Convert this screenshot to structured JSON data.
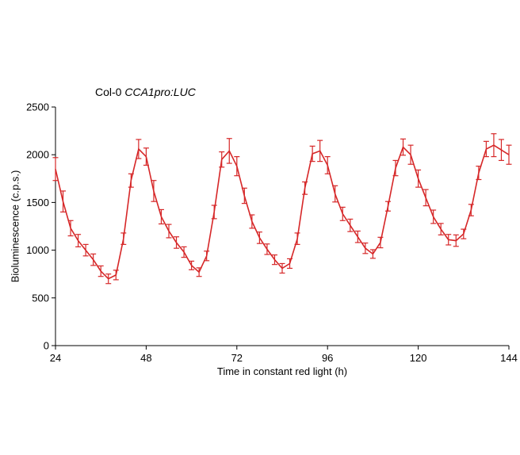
{
  "chart_data": {
    "type": "line",
    "title_prefix": "Col-0",
    "title_italic": "CCA1pro:LUC",
    "xlabel": "Time in constant red light (h)",
    "ylabel": "Bioluminescence (c.p.s.)",
    "xlim": [
      24,
      144
    ],
    "ylim": [
      0,
      2500
    ],
    "xticks": [
      24,
      48,
      72,
      96,
      120,
      144
    ],
    "yticks": [
      0,
      500,
      1000,
      1500,
      2000,
      2500
    ],
    "grid": false,
    "legend": "none",
    "line_color": "#d62728",
    "series": [
      {
        "x": [
          24,
          26,
          28,
          30,
          32,
          34,
          36,
          38,
          40,
          42,
          44,
          46,
          48,
          50,
          52,
          54,
          56,
          58,
          60,
          62,
          64,
          66,
          68,
          70,
          72,
          74,
          76,
          78,
          80,
          82,
          84,
          86,
          88,
          90,
          92,
          94,
          96,
          98,
          100,
          102,
          104,
          106,
          108,
          110,
          112,
          114,
          116,
          118,
          120,
          122,
          124,
          126,
          128,
          130,
          132,
          134,
          136,
          138,
          140,
          142,
          144
        ],
        "y": [
          1850,
          1510,
          1230,
          1100,
          1000,
          900,
          780,
          700,
          740,
          1120,
          1730,
          2060,
          1980,
          1620,
          1350,
          1200,
          1080,
          980,
          840,
          770,
          940,
          1400,
          1950,
          2040,
          1880,
          1570,
          1300,
          1130,
          1010,
          900,
          810,
          860,
          1120,
          1650,
          2010,
          2040,
          1890,
          1590,
          1380,
          1260,
          1140,
          1020,
          960,
          1080,
          1460,
          1860,
          2080,
          2000,
          1750,
          1550,
          1350,
          1220,
          1110,
          1100,
          1170,
          1420,
          1810,
          2060,
          2100,
          2050,
          2000
        ],
        "err": [
          120,
          110,
          80,
          65,
          60,
          60,
          55,
          50,
          50,
          60,
          70,
          100,
          90,
          110,
          75,
          70,
          60,
          55,
          45,
          45,
          50,
          70,
          80,
          130,
          100,
          80,
          70,
          60,
          55,
          50,
          50,
          50,
          60,
          65,
          80,
          110,
          90,
          85,
          70,
          65,
          60,
          55,
          45,
          55,
          50,
          80,
          85,
          100,
          90,
          85,
          70,
          60,
          55,
          60,
          50,
          60,
          70,
          80,
          120,
          110,
          100
        ]
      }
    ]
  }
}
